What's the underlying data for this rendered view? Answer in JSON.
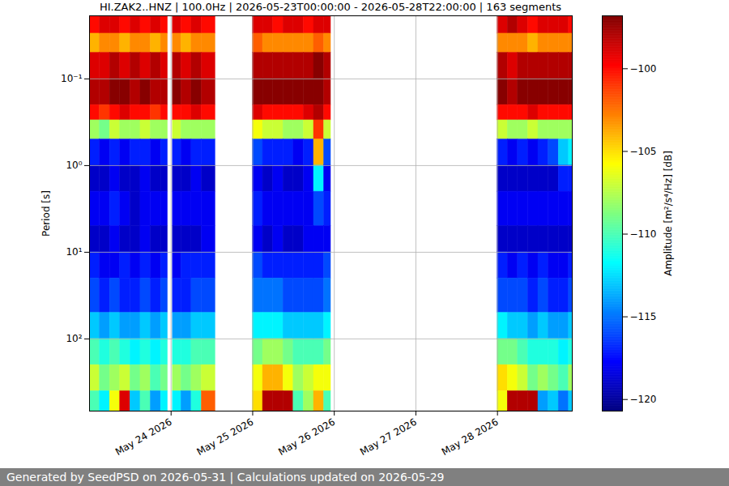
{
  "chart_data": {
    "type": "heatmap",
    "title": "HI.ZAK2..HNZ | 100.0Hz | 2026-05-23T00:00:00 - 2026-05-28T22:00:00 | 163 segments",
    "footer": "Generated by SeedPSD on 2026-05-31 | Calculations updated on 2026-05-29",
    "y_label": "Period [s]",
    "x": [
      "2026-05-23T00:00",
      "2026-05-23T03:00",
      "2026-05-23T06:00",
      "2026-05-23T09:00",
      "2026-05-23T12:00",
      "2026-05-23T15:00",
      "2026-05-23T18:00",
      "2026-05-23T21:00",
      "2026-05-24T00:30",
      "2026-05-24T03:00",
      "2026-05-24T06:00",
      "2026-05-24T09:00",
      "2026-05-25T00:00",
      "2026-05-25T03:00",
      "2026-05-25T06:00",
      "2026-05-25T09:00",
      "2026-05-25T12:00",
      "2026-05-25T15:00",
      "2026-05-25T18:00",
      "2026-05-25T21:00",
      "2026-05-28T00:00",
      "2026-05-28T03:00",
      "2026-05-28T06:00",
      "2026-05-28T09:00",
      "2026-05-28T12:00",
      "2026-05-28T15:00",
      "2026-05-28T18:00",
      "2026-05-28T21:00"
    ],
    "x_end": [
      "2026-05-23T03:00",
      "2026-05-23T06:00",
      "2026-05-23T09:00",
      "2026-05-23T12:00",
      "2026-05-23T15:00",
      "2026-05-23T18:00",
      "2026-05-23T21:00",
      "2026-05-23T23:00",
      "2026-05-24T03:00",
      "2026-05-24T06:00",
      "2026-05-24T09:00",
      "2026-05-24T13:00",
      "2026-05-25T03:00",
      "2026-05-25T06:00",
      "2026-05-25T09:00",
      "2026-05-25T12:00",
      "2026-05-25T15:00",
      "2026-05-25T18:00",
      "2026-05-25T21:00",
      "2026-05-25T23:00",
      "2026-05-28T03:00",
      "2026-05-28T06:00",
      "2026-05-28T09:00",
      "2026-05-28T12:00",
      "2026-05-28T15:00",
      "2026-05-28T18:00",
      "2026-05-28T21:00",
      "2026-05-28T22:00"
    ],
    "y_bins": [
      0.0187,
      0.03,
      0.05,
      0.1,
      0.2,
      0.3,
      0.5,
      1,
      2,
      5,
      10,
      20,
      50,
      100,
      200,
      400,
      680
    ],
    "values": [
      [
        -100,
        -104,
        -99,
        -98,
        -100,
        -108,
        -117,
        -119,
        -118,
        -119,
        -117,
        -116,
        -113,
        -110,
        -107,
        -110
      ],
      [
        -99,
        -103,
        -99,
        -98,
        -101,
        -109,
        -118,
        -119,
        -118,
        -119,
        -118,
        -117,
        -114,
        -111,
        -109,
        -112
      ],
      [
        -99,
        -103,
        -98,
        -97,
        -100,
        -107,
        -117,
        -118,
        -117,
        -118,
        -118,
        -116,
        -113,
        -110,
        -108,
        -106
      ],
      [
        -100,
        -104,
        -99,
        -97,
        -99,
        -108,
        -118,
        -119,
        -118,
        -119,
        -117,
        -117,
        -114,
        -111,
        -107,
        -99
      ],
      [
        -99,
        -103,
        -98,
        -98,
        -100,
        -108,
        -117,
        -119,
        -119,
        -119,
        -118,
        -117,
        -114,
        -112,
        -109,
        -113
      ],
      [
        -100,
        -103,
        -99,
        -97,
        -100,
        -107,
        -117,
        -118,
        -118,
        -118,
        -117,
        -116,
        -113,
        -111,
        -108,
        -110
      ],
      [
        -99,
        -104,
        -98,
        -98,
        -101,
        -108,
        -118,
        -119,
        -118,
        -119,
        -118,
        -117,
        -114,
        -112,
        -110,
        -114
      ],
      [
        -100,
        -103,
        -99,
        -98,
        -100,
        -108,
        -117,
        -119,
        -118,
        -119,
        -117,
        -116,
        -113,
        -111,
        -109,
        -112
      ],
      [
        -99,
        -103,
        -98,
        -97,
        -100,
        -107,
        -117,
        -119,
        -118,
        -119,
        -118,
        -117,
        -114,
        -111,
        -108,
        -112
      ],
      [
        -100,
        -104,
        -99,
        -98,
        -100,
        -108,
        -118,
        -119,
        -118,
        -119,
        -117,
        -117,
        -114,
        -111,
        -109,
        -114
      ],
      [
        -99,
        -103,
        -98,
        -97,
        -99,
        -108,
        -117,
        -118,
        -118,
        -119,
        -117,
        -116,
        -113,
        -110,
        -108,
        -111
      ],
      [
        -100,
        -103,
        -99,
        -98,
        -100,
        -108,
        -117,
        -119,
        -118,
        -118,
        -117,
        -116,
        -113,
        -110,
        -107,
        -102
      ],
      [
        -99,
        -102,
        -98,
        -97,
        -99,
        -106,
        -116,
        -118,
        -117,
        -118,
        -116,
        -115,
        -112,
        -109,
        -106,
        -105
      ],
      [
        -99,
        -103,
        -98,
        -97,
        -100,
        -107,
        -117,
        -119,
        -118,
        -119,
        -117,
        -115,
        -112,
        -108,
        -104,
        -98
      ],
      [
        -100,
        -103,
        -98,
        -97,
        -100,
        -107,
        -117,
        -118,
        -118,
        -118,
        -117,
        -115,
        -112,
        -108,
        -104,
        -98
      ],
      [
        -99,
        -103,
        -98,
        -97,
        -100,
        -108,
        -117,
        -119,
        -118,
        -119,
        -117,
        -116,
        -113,
        -109,
        -106,
        -98
      ],
      [
        -99,
        -103,
        -98,
        -97,
        -100,
        -108,
        -118,
        -119,
        -118,
        -119,
        -117,
        -116,
        -113,
        -110,
        -108,
        -110
      ],
      [
        -100,
        -103,
        -98,
        -97,
        -99,
        -107,
        -117,
        -118,
        -118,
        -118,
        -117,
        -116,
        -113,
        -110,
        -107,
        -108
      ],
      [
        -99,
        -102,
        -97,
        -97,
        -98,
        -101,
        -104,
        -112,
        -116,
        -118,
        -117,
        -116,
        -113,
        -110,
        -106,
        -104
      ],
      [
        -99,
        -103,
        -98,
        -98,
        -100,
        -107,
        -116,
        -118,
        -117,
        -118,
        -116,
        -115,
        -112,
        -109,
        -106,
        -110
      ],
      [
        -99,
        -103,
        -98,
        -97,
        -100,
        -107,
        -117,
        -119,
        -118,
        -119,
        -117,
        -116,
        -112,
        -109,
        -105,
        -106
      ],
      [
        -98,
        -103,
        -99,
        -98,
        -100,
        -108,
        -118,
        -119,
        -118,
        -119,
        -118,
        -116,
        -113,
        -109,
        -106,
        -98
      ],
      [
        -99,
        -103,
        -98,
        -97,
        -100,
        -108,
        -117,
        -119,
        -118,
        -119,
        -117,
        -116,
        -113,
        -110,
        -107,
        -98
      ],
      [
        -100,
        -104,
        -98,
        -97,
        -99,
        -107,
        -118,
        -119,
        -118,
        -119,
        -118,
        -117,
        -114,
        -111,
        -109,
        -98
      ],
      [
        -99,
        -103,
        -98,
        -97,
        -100,
        -108,
        -117,
        -119,
        -118,
        -119,
        -117,
        -116,
        -113,
        -111,
        -108,
        -114
      ],
      [
        -99,
        -103,
        -98,
        -97,
        -100,
        -108,
        -116,
        -119,
        -118,
        -119,
        -118,
        -117,
        -114,
        -111,
        -109,
        -113
      ],
      [
        -99,
        -103,
        -98,
        -97,
        -100,
        -108,
        -113,
        -117,
        -118,
        -119,
        -118,
        -117,
        -114,
        -112,
        -110,
        -115
      ],
      [
        -100,
        -103,
        -98,
        -97,
        -100,
        -108,
        -112,
        -117,
        -118,
        -119,
        -117,
        -116,
        -113,
        -111,
        -108,
        -113
      ]
    ],
    "xlim": [
      "2026-05-23T00:00",
      "2026-05-28T22:00"
    ],
    "xticks": [
      {
        "value": "2026-05-24T00:00",
        "label": "May 24 2026"
      },
      {
        "value": "2026-05-25T00:00",
        "label": "May 25 2026"
      },
      {
        "value": "2026-05-26T00:00",
        "label": "May 26 2026"
      },
      {
        "value": "2026-05-27T00:00",
        "label": "May 27 2026"
      },
      {
        "value": "2026-05-28T00:00",
        "label": "May 28 2026"
      }
    ],
    "ylim": [
      0.0187,
      680
    ],
    "yticks": [
      {
        "value": 0.1,
        "label": "10⁻¹"
      },
      {
        "value": 1,
        "label": "10⁰"
      },
      {
        "value": 10,
        "label": "10¹"
      },
      {
        "value": 100,
        "label": "10²"
      }
    ],
    "log": "y",
    "grid": true,
    "colorbar": {
      "label": "Amplitude [m²/s⁴/Hz] [dB]",
      "lim": [
        -120.7,
        -96.8
      ],
      "ticks": [
        -120,
        -115,
        -110,
        -105,
        -100
      ]
    }
  }
}
